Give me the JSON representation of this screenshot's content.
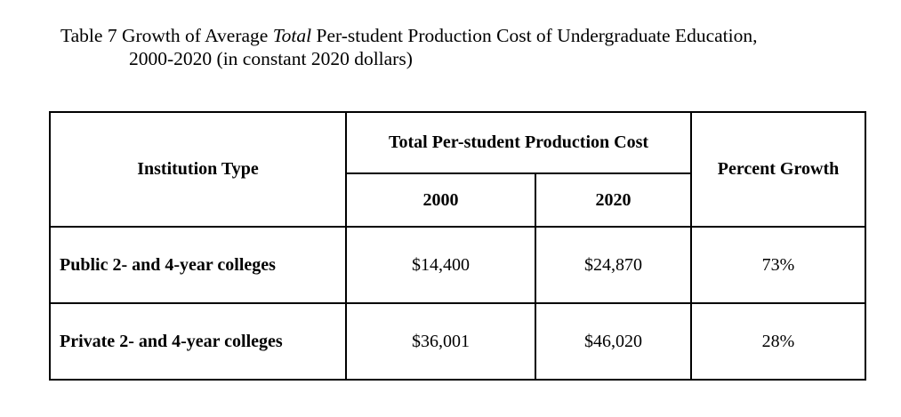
{
  "caption": {
    "prefix": "Table 7 Growth of Average ",
    "emphasis": "Total",
    "suffix": " Per-student Production Cost of Undergraduate Education,",
    "line2": "2000-2020 (in constant 2020 dollars)"
  },
  "table": {
    "header": {
      "institution_type": "Institution Type",
      "group_label": "Total Per-student Production Cost",
      "year_2000": "2000",
      "year_2020": "2020",
      "percent_growth": "Percent Growth"
    },
    "rows": [
      {
        "type": "Public 2- and 4-year colleges",
        "cost_2000": "$14,400",
        "cost_2020": "$24,870",
        "growth": "73%"
      },
      {
        "type": "Private 2- and 4-year colleges",
        "cost_2000": "$36,001",
        "cost_2020": "$46,020",
        "growth": "28%"
      }
    ]
  }
}
